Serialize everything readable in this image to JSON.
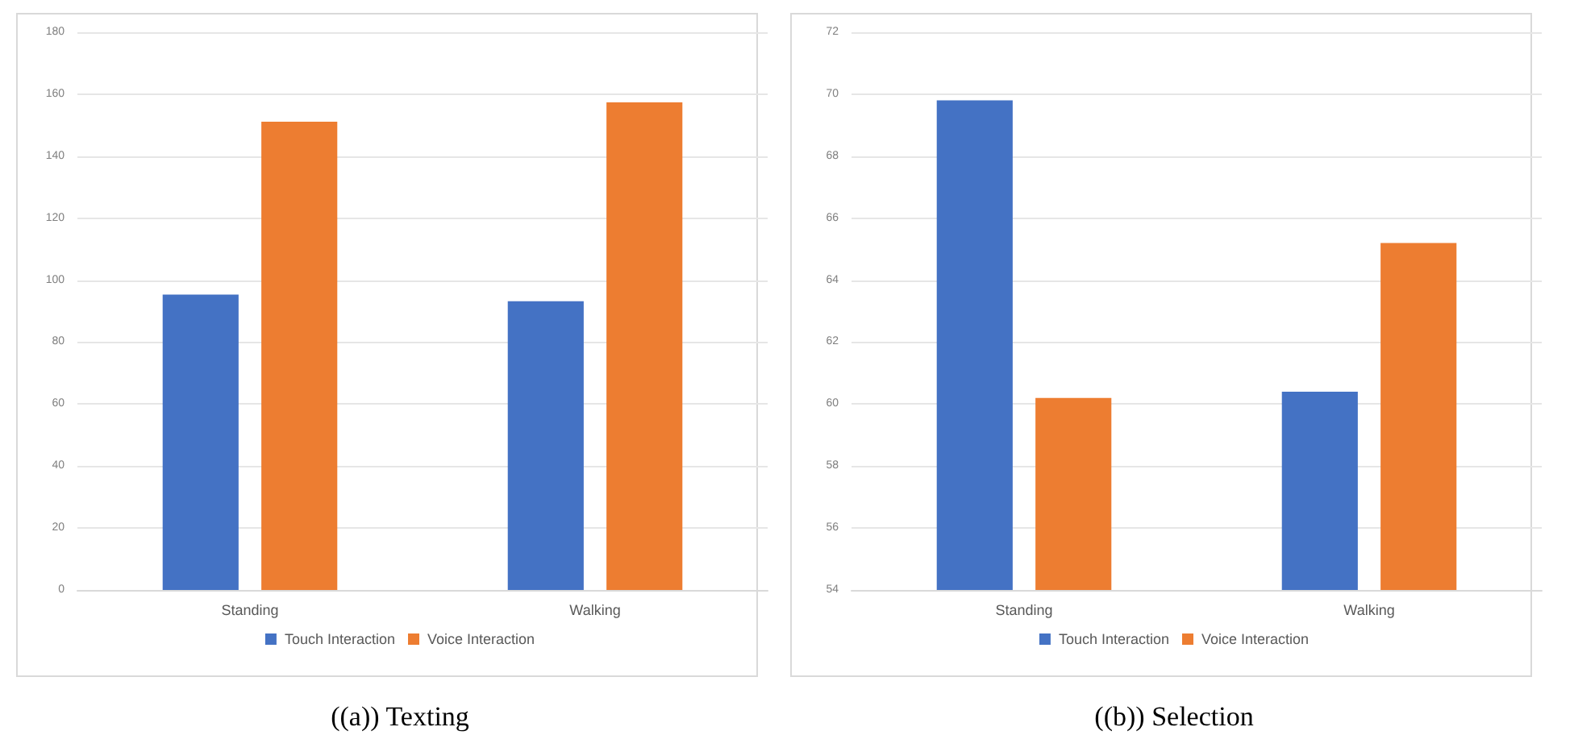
{
  "chart_data": [
    {
      "type": "bar",
      "title": "((a)) Texting",
      "categories": [
        "Standing",
        "Walking"
      ],
      "series": [
        {
          "name": "Touch Interaction",
          "color": "#4472c4",
          "values": [
            95.3,
            93.2
          ]
        },
        {
          "name": "Voice Interaction",
          "color": "#ed7d31",
          "values": [
            151.1,
            157.4
          ]
        }
      ],
      "ylim": [
        0,
        180
      ],
      "yticks": [
        0,
        20,
        40,
        60,
        80,
        100,
        120,
        140,
        160,
        180
      ],
      "grid": "y",
      "legend": "bottom"
    },
    {
      "type": "bar",
      "title": "((b)) Selection",
      "categories": [
        "Standing",
        "Walking"
      ],
      "series": [
        {
          "name": "Touch Interaction",
          "color": "#4472c4",
          "values": [
            69.8,
            60.4
          ]
        },
        {
          "name": "Voice Interaction",
          "color": "#ed7d31",
          "values": [
            60.2,
            65.2
          ]
        }
      ],
      "ylim": [
        54,
        72
      ],
      "yticks": [
        54,
        56,
        58,
        60,
        62,
        64,
        66,
        68,
        70,
        72
      ],
      "grid": "y",
      "legend": "bottom"
    }
  ]
}
